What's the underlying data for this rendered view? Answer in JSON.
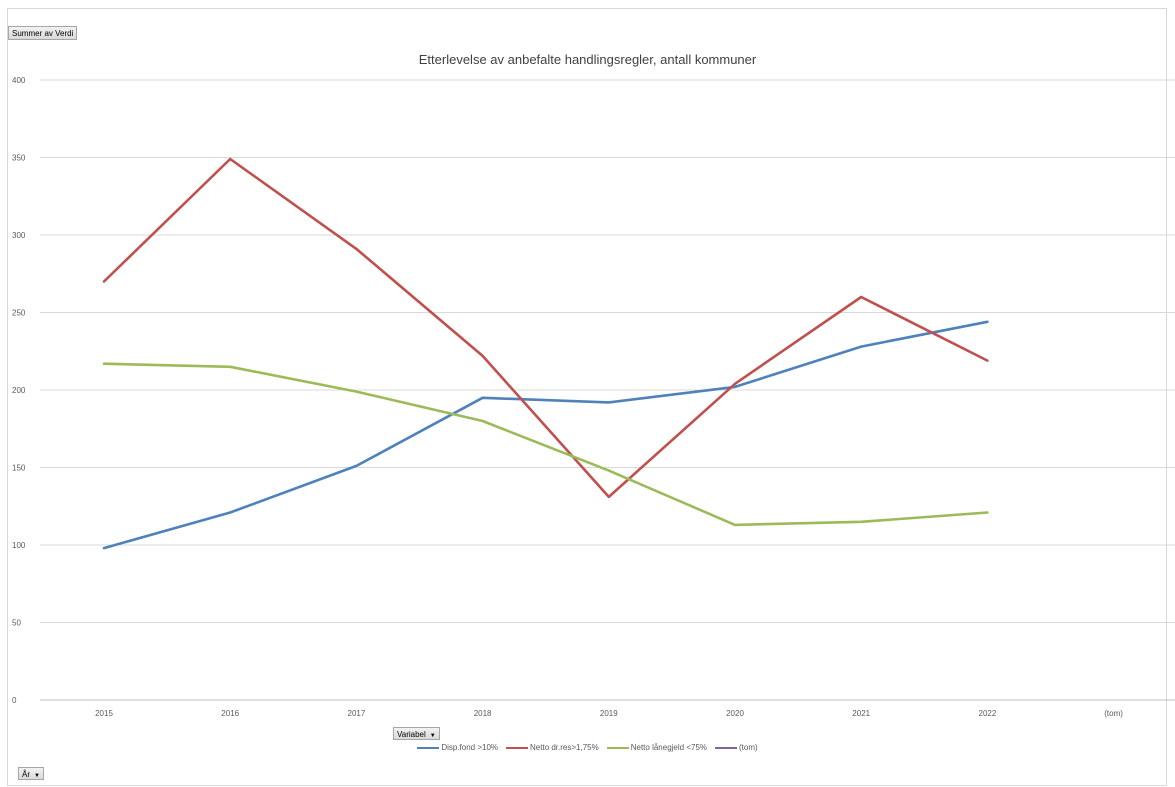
{
  "pivot": {
    "value_field": "Summer av Verdi",
    "series_field": "Variabel",
    "category_field": "År"
  },
  "chart_data": {
    "type": "line",
    "title": "Etterlevelse av anbefalte handlingsregler, antall kommuner",
    "xlabel": "",
    "ylabel": "",
    "categories": [
      "2015",
      "2016",
      "2017",
      "2018",
      "2019",
      "2020",
      "2021",
      "2022",
      "(tom)"
    ],
    "ylim": [
      0,
      400
    ],
    "yticks": [
      "0",
      "50",
      "100",
      "150",
      "200",
      "250",
      "300",
      "350",
      "400"
    ],
    "grid": true,
    "legend_position": "bottom",
    "series": [
      {
        "name": "Disp.fond >10%",
        "color": "#4f81bd",
        "values": [
          98,
          121,
          151,
          195,
          192,
          202,
          228,
          244,
          null
        ]
      },
      {
        "name": "Netto dr.res>1,75%",
        "color": "#c0504d",
        "values": [
          270,
          349,
          291,
          222,
          131,
          204,
          260,
          219,
          null
        ]
      },
      {
        "name": "Netto lånegjeld <75%",
        "color": "#9bbb59",
        "values": [
          217,
          215,
          199,
          180,
          148,
          113,
          115,
          121,
          null
        ]
      },
      {
        "name": "(tom)",
        "color": "#8064a2",
        "values": [
          null,
          null,
          null,
          null,
          null,
          null,
          null,
          null,
          null
        ]
      }
    ]
  }
}
